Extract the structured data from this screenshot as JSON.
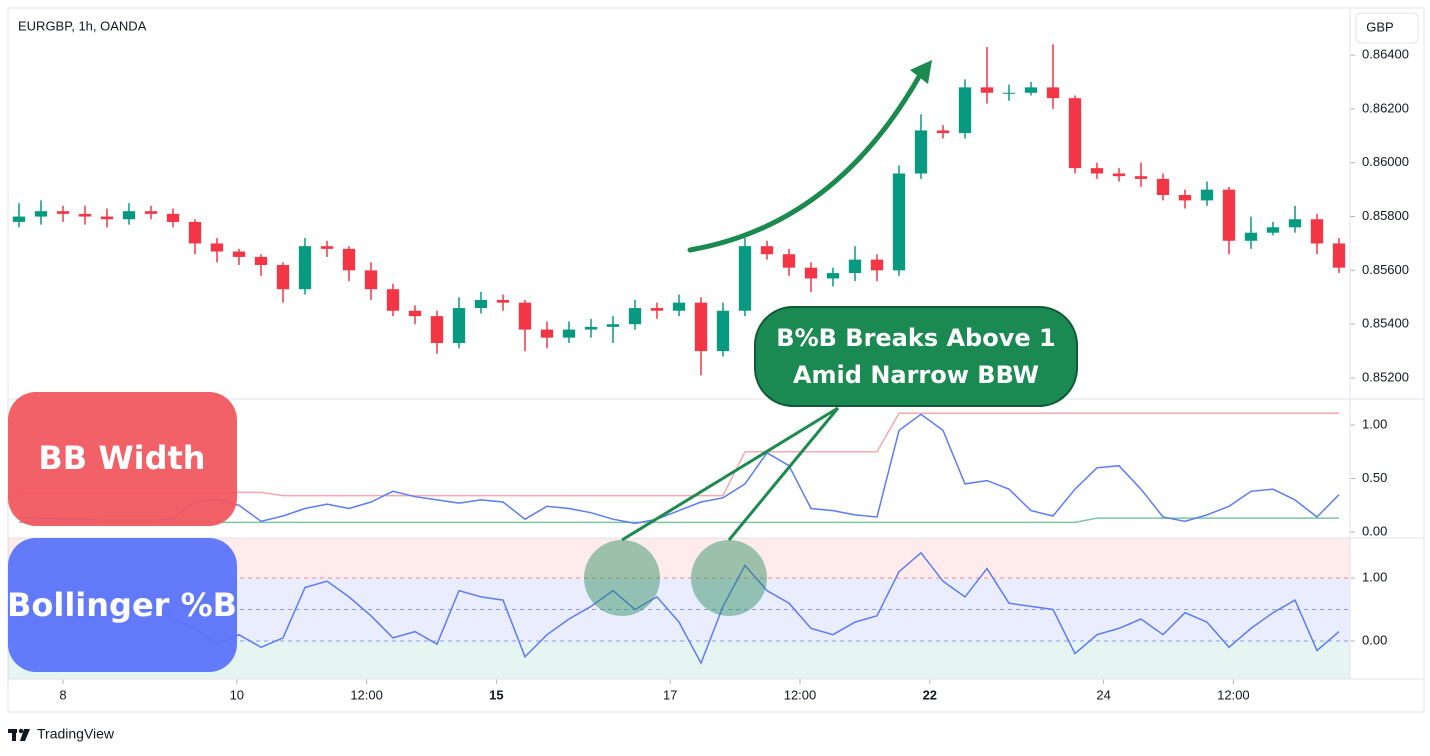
{
  "header": {
    "symbol": "EURGBP, 1h, OANDA",
    "currency": "GBP"
  },
  "chart_data": [
    {
      "type": "candlestick",
      "up_color": "#089981",
      "down_color": "#f23645",
      "open": [
        0.8578,
        0.858,
        0.8582,
        0.8581,
        0.858,
        0.8579,
        0.8582,
        0.8581,
        0.8578,
        0.857,
        0.8567,
        0.8565,
        0.8562,
        0.8553,
        0.8569,
        0.8568,
        0.856,
        0.8553,
        0.8545,
        0.8543,
        0.8533,
        0.8546,
        0.8549,
        0.8548,
        0.8538,
        0.8535,
        0.8538,
        0.8539,
        0.854,
        0.8546,
        0.8545,
        0.8548,
        0.853,
        0.8545,
        0.8569,
        0.8566,
        0.8561,
        0.8557,
        0.8559,
        0.8564,
        0.856,
        0.8596,
        0.8612,
        0.8611,
        0.8628,
        0.8626,
        0.8626,
        0.8628,
        0.8624,
        0.8598,
        0.8596,
        0.8595,
        0.8594,
        0.8588,
        0.8586,
        0.859,
        0.8571,
        0.8574,
        0.8576,
        0.8579,
        0.857
      ],
      "high": [
        0.8585,
        0.8586,
        0.8584,
        0.8584,
        0.8583,
        0.8585,
        0.8584,
        0.8583,
        0.8579,
        0.8572,
        0.8568,
        0.8566,
        0.8563,
        0.8572,
        0.8571,
        0.8569,
        0.8563,
        0.8555,
        0.8547,
        0.8545,
        0.855,
        0.8552,
        0.8551,
        0.8549,
        0.8541,
        0.8541,
        0.8542,
        0.8543,
        0.8549,
        0.8548,
        0.8551,
        0.855,
        0.8548,
        0.8572,
        0.8571,
        0.8568,
        0.8563,
        0.8561,
        0.8569,
        0.8566,
        0.8599,
        0.8618,
        0.8614,
        0.8631,
        0.8643,
        0.8629,
        0.863,
        0.8644,
        0.8625,
        0.86,
        0.8598,
        0.86,
        0.8596,
        0.859,
        0.8593,
        0.8591,
        0.858,
        0.8578,
        0.8584,
        0.8581,
        0.8572
      ],
      "low": [
        0.8576,
        0.8577,
        0.8578,
        0.8577,
        0.8576,
        0.8577,
        0.8579,
        0.8576,
        0.8566,
        0.8563,
        0.8562,
        0.8558,
        0.8548,
        0.8551,
        0.8565,
        0.8556,
        0.8549,
        0.8543,
        0.854,
        0.8529,
        0.8531,
        0.8544,
        0.8545,
        0.853,
        0.8531,
        0.8533,
        0.8535,
        0.8533,
        0.8538,
        0.8542,
        0.8543,
        0.8521,
        0.8528,
        0.8543,
        0.8564,
        0.8558,
        0.8552,
        0.8554,
        0.8556,
        0.8556,
        0.8558,
        0.8594,
        0.8609,
        0.8609,
        0.8622,
        0.8623,
        0.8625,
        0.862,
        0.8596,
        0.8594,
        0.8593,
        0.8591,
        0.8586,
        0.8583,
        0.8584,
        0.8566,
        0.8568,
        0.8573,
        0.8574,
        0.8566,
        0.8559
      ],
      "close": [
        0.858,
        0.8582,
        0.8581,
        0.858,
        0.8579,
        0.8582,
        0.8581,
        0.8578,
        0.857,
        0.8567,
        0.8565,
        0.8562,
        0.8553,
        0.8569,
        0.8568,
        0.856,
        0.8553,
        0.8545,
        0.8543,
        0.8533,
        0.8546,
        0.8549,
        0.8548,
        0.8538,
        0.8535,
        0.8538,
        0.8539,
        0.854,
        0.8546,
        0.8545,
        0.8548,
        0.853,
        0.8545,
        0.8569,
        0.8566,
        0.8561,
        0.8557,
        0.8559,
        0.8564,
        0.856,
        0.8596,
        0.8612,
        0.8611,
        0.8628,
        0.8626,
        0.8626,
        0.8628,
        0.8624,
        0.8598,
        0.8596,
        0.8595,
        0.8594,
        0.8588,
        0.8586,
        0.859,
        0.8571,
        0.8574,
        0.8576,
        0.8579,
        0.857,
        0.8561
      ],
      "ylim": [
        0.85122,
        0.86575
      ],
      "yticks": [
        {
          "value": 0.852,
          "label": "0.85200"
        },
        {
          "value": 0.854,
          "label": "0.85400"
        },
        {
          "value": 0.856,
          "label": "0.85600"
        },
        {
          "value": 0.858,
          "label": "0.85800"
        },
        {
          "value": 0.86,
          "label": "0.86000"
        },
        {
          "value": 0.862,
          "label": "0.86200"
        },
        {
          "value": 0.864,
          "label": "0.86400"
        }
      ],
      "xlim": [
        0,
        61
      ],
      "xticks": [
        {
          "value": 2.5,
          "label": "8"
        },
        {
          "value": 10.4,
          "label": "10"
        },
        {
          "value": 16.3,
          "label": "12:00"
        },
        {
          "value": 22.2,
          "label": "15",
          "bold": true
        },
        {
          "value": 30.1,
          "label": "17"
        },
        {
          "value": 36,
          "label": "12:00"
        },
        {
          "value": 41.9,
          "label": "22",
          "bold": true
        },
        {
          "value": 49.8,
          "label": "24"
        },
        {
          "value": 55.7,
          "label": "12:00"
        }
      ]
    },
    {
      "type": "line",
      "series": [
        {
          "color": "#f7a8ac",
          "values": [
            0.37,
            0.37,
            0.37,
            0.37,
            0.37,
            0.37,
            0.37,
            0.37,
            0.37,
            0.37,
            0.37,
            0.37,
            0.34,
            0.34,
            0.34,
            0.34,
            0.34,
            0.34,
            0.34,
            0.34,
            0.34,
            0.34,
            0.34,
            0.34,
            0.34,
            0.34,
            0.34,
            0.34,
            0.34,
            0.34,
            0.34,
            0.34,
            0.34,
            0.75,
            0.75,
            0.75,
            0.75,
            0.75,
            0.75,
            0.75,
            1.11,
            1.11,
            1.11,
            1.11,
            1.11,
            1.11,
            1.11,
            1.11,
            1.11,
            1.11,
            1.11,
            1.11,
            1.11,
            1.11,
            1.11,
            1.11,
            1.11,
            1.11,
            1.11,
            1.11,
            1.11
          ]
        },
        {
          "color": "#7cc7a0",
          "values": [
            0.09,
            0.09,
            0.09,
            0.09,
            0.09,
            0.09,
            0.09,
            0.09,
            0.09,
            0.09,
            0.09,
            0.09,
            0.09,
            0.09,
            0.09,
            0.09,
            0.09,
            0.09,
            0.09,
            0.09,
            0.09,
            0.09,
            0.09,
            0.09,
            0.09,
            0.09,
            0.09,
            0.09,
            0.09,
            0.09,
            0.09,
            0.09,
            0.09,
            0.09,
            0.09,
            0.09,
            0.09,
            0.09,
            0.09,
            0.09,
            0.09,
            0.09,
            0.09,
            0.09,
            0.09,
            0.09,
            0.09,
            0.09,
            0.09,
            0.13,
            0.13,
            0.13,
            0.13,
            0.13,
            0.13,
            0.13,
            0.13,
            0.13,
            0.13,
            0.13,
            0.13
          ]
        },
        {
          "color": "#5b7cf5",
          "values": [
            0.14,
            0.13,
            0.12,
            0.12,
            0.11,
            0.11,
            0.11,
            0.12,
            0.28,
            0.3,
            0.25,
            0.1,
            0.15,
            0.22,
            0.26,
            0.22,
            0.28,
            0.38,
            0.33,
            0.3,
            0.27,
            0.3,
            0.28,
            0.12,
            0.24,
            0.22,
            0.18,
            0.12,
            0.08,
            0.12,
            0.2,
            0.28,
            0.32,
            0.45,
            0.74,
            0.62,
            0.22,
            0.2,
            0.16,
            0.14,
            0.95,
            1.1,
            0.95,
            0.45,
            0.48,
            0.4,
            0.2,
            0.15,
            0.4,
            0.6,
            0.62,
            0.4,
            0.14,
            0.1,
            0.16,
            0.24,
            0.38,
            0.4,
            0.3,
            0.14,
            0.35
          ]
        }
      ],
      "ylim": [
        -0.056,
        1.243
      ],
      "yticks": [
        {
          "value": 0,
          "label": "0.00"
        },
        {
          "value": 0.5,
          "label": "0.50"
        },
        {
          "value": 1,
          "label": "1.00"
        }
      ]
    },
    {
      "type": "line",
      "series": [
        {
          "color": "#5b7cf5",
          "values": [
            0.5,
            0.45,
            0.55,
            0.3,
            0.65,
            0.4,
            0.6,
            0.35,
            0.2,
            -0.05,
            0.1,
            -0.1,
            0.05,
            0.85,
            0.95,
            0.7,
            0.4,
            0.05,
            0.15,
            -0.05,
            0.8,
            0.7,
            0.65,
            -0.25,
            0.1,
            0.35,
            0.55,
            0.8,
            0.5,
            0.7,
            0.3,
            -0.35,
            0.55,
            1.2,
            0.8,
            0.6,
            0.2,
            0.1,
            0.3,
            0.4,
            1.1,
            1.4,
            0.95,
            0.7,
            1.15,
            0.6,
            0.55,
            0.5,
            -0.2,
            0.1,
            0.2,
            0.35,
            0.1,
            0.45,
            0.3,
            -0.1,
            0.2,
            0.45,
            0.65,
            -0.15,
            0.15
          ]
        }
      ],
      "levels": [
        1,
        0.5,
        0
      ],
      "ylim": [
        -0.603,
        1.635
      ],
      "yticks": [
        {
          "value": 0,
          "label": "0.00"
        },
        {
          "value": 1,
          "label": "1.00"
        }
      ]
    }
  ],
  "annotations": {
    "bbw_label": "BB Width",
    "pctb_label": "Bollinger %B",
    "callout": [
      "B%B Breaks Above 1",
      "Amid Narrow BBW"
    ]
  },
  "footer": {
    "brand": "TradingView"
  }
}
